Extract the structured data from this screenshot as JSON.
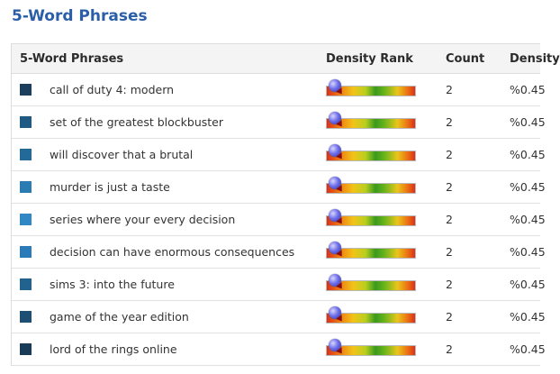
{
  "page": {
    "title": "5-Word Phrases"
  },
  "table": {
    "headers": {
      "phrase": "5-Word Phrases",
      "rank": "Density Rank",
      "count": "Count",
      "density": "Density"
    },
    "rows": [
      {
        "phrase": "call of duty 4: modern",
        "count": "2",
        "density": "%0.45",
        "color": "#1b3f5c"
      },
      {
        "phrase": "set of the greatest blockbuster",
        "count": "2",
        "density": "%0.45",
        "color": "#1f5a85"
      },
      {
        "phrase": "will discover that a brutal",
        "count": "2",
        "density": "%0.45",
        "color": "#246a99"
      },
      {
        "phrase": "murder is just a taste",
        "count": "2",
        "density": "%0.45",
        "color": "#2c7cb4"
      },
      {
        "phrase": "series where your every decision",
        "count": "2",
        "density": "%0.45",
        "color": "#2f88c4"
      },
      {
        "phrase": "decision can have enormous consequences",
        "count": "2",
        "density": "%0.45",
        "color": "#2a7bb8"
      },
      {
        "phrase": "sims 3: into the future",
        "count": "2",
        "density": "%0.45",
        "color": "#22628f"
      },
      {
        "phrase": "game of the year edition",
        "count": "2",
        "density": "%0.45",
        "color": "#1d4f75"
      },
      {
        "phrase": "lord of the rings online",
        "count": "2",
        "density": "%0.45",
        "color": "#193b58"
      }
    ]
  }
}
